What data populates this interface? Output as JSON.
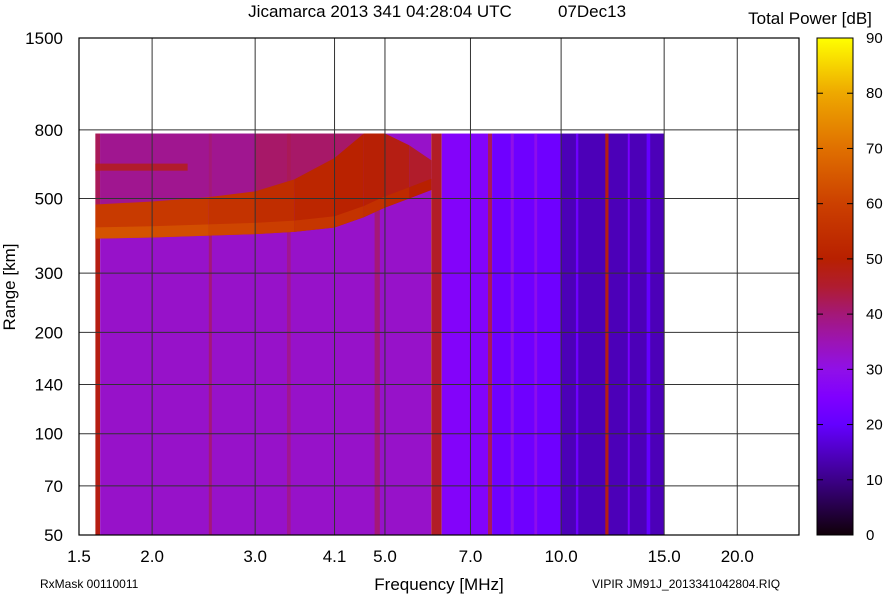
{
  "header": {
    "title": "Jicamarca 2013 341 04:28:04 UTC",
    "date": "07Dec13",
    "colorbar_title": "Total Power [dB]"
  },
  "footer": {
    "left": "RxMask 00110011",
    "right": "VIPIR  JM91J_2013341042804.RIQ"
  },
  "chart_data": {
    "type": "heatmap",
    "title": "Jicamarca 2013 341 04:28:04 UTC   07Dec13",
    "xlabel": "Frequency [MHz]",
    "ylabel": "Range [km]",
    "xscale": "log",
    "yscale": "log",
    "xlim": [
      1.5,
      25.5
    ],
    "ylim": [
      50,
      1500
    ],
    "xticks": [
      1.5,
      2.0,
      3.0,
      4.1,
      5.0,
      7.0,
      10.0,
      15.0,
      20.0
    ],
    "xtick_labels": [
      "1.5",
      "2.0",
      "3.0",
      "4.1",
      "5.0",
      "7.0",
      "10.0",
      "15.0",
      "20.0"
    ],
    "yticks": [
      50,
      70,
      100,
      140,
      200,
      300,
      500,
      800,
      1500
    ],
    "ytick_labels": [
      "50",
      "70",
      "100",
      "140",
      "200",
      "300",
      "500",
      "800",
      "1500"
    ],
    "grid": true,
    "data_extent": {
      "freq": [
        1.6,
        15.0
      ],
      "range": [
        50,
        780
      ]
    },
    "colorbar": {
      "label": "Total Power [dB]",
      "range": [
        0,
        90
      ],
      "ticks": [
        "0",
        "10",
        "20",
        "30",
        "40",
        "50",
        "60",
        "70",
        "80",
        "90"
      ],
      "stops": [
        [
          0,
          "#100008"
        ],
        [
          10,
          "#3c0088"
        ],
        [
          20,
          "#6400ff"
        ],
        [
          25,
          "#8000ff"
        ],
        [
          30,
          "#9010e8"
        ],
        [
          35,
          "#9c14b4"
        ],
        [
          40,
          "#a41878"
        ],
        [
          45,
          "#b01c30"
        ],
        [
          50,
          "#b82000"
        ],
        [
          60,
          "#cc4000"
        ],
        [
          70,
          "#e07000"
        ],
        [
          80,
          "#eea800"
        ],
        [
          90,
          "#ffff00"
        ]
      ]
    },
    "background_bands": [
      {
        "f": [
          1.6,
          1.63
        ],
        "power": 48
      },
      {
        "f": [
          1.63,
          6.0
        ],
        "power": 33
      },
      {
        "f": [
          2.5,
          2.53
        ],
        "power": 40
      },
      {
        "f": [
          3.4,
          3.45
        ],
        "power": 38
      },
      {
        "f": [
          4.8,
          4.9
        ],
        "power": 40
      },
      {
        "f": [
          6.0,
          6.25
        ],
        "power": 46
      },
      {
        "f": [
          6.25,
          7.5
        ],
        "power": 26
      },
      {
        "f": [
          7.5,
          7.62
        ],
        "power": 42
      },
      {
        "f": [
          7.62,
          10.0
        ],
        "power": 22
      },
      {
        "f": [
          8.2,
          8.3
        ],
        "power": 30
      },
      {
        "f": [
          9.0,
          9.1
        ],
        "power": 29
      },
      {
        "f": [
          10.0,
          15.0
        ],
        "power": 14
      },
      {
        "f": [
          10.6,
          10.7
        ],
        "power": 22
      },
      {
        "f": [
          11.9,
          12.05
        ],
        "power": 48
      },
      {
        "f": [
          13.0,
          13.1
        ],
        "power": 24
      },
      {
        "f": [
          14.0,
          14.2
        ],
        "power": 20
      }
    ],
    "echo_trace": [
      {
        "freq": 1.6,
        "h_low": 380,
        "h_high": 480,
        "power": 58
      },
      {
        "freq": 2.0,
        "h_low": 383,
        "h_high": 490,
        "power": 58
      },
      {
        "freq": 2.5,
        "h_low": 388,
        "h_high": 505,
        "power": 57
      },
      {
        "freq": 3.0,
        "h_low": 392,
        "h_high": 525,
        "power": 55
      },
      {
        "freq": 3.5,
        "h_low": 398,
        "h_high": 570,
        "power": 53
      },
      {
        "freq": 4.1,
        "h_low": 410,
        "h_high": 660,
        "power": 51
      },
      {
        "freq": 4.6,
        "h_low": 440,
        "h_high": 780,
        "power": 50
      },
      {
        "freq": 5.0,
        "h_low": 470,
        "h_high": 780,
        "power": 49
      },
      {
        "freq": 5.5,
        "h_low": 500,
        "h_high": 720,
        "power": 47
      },
      {
        "freq": 6.0,
        "h_low": 530,
        "h_high": 650,
        "power": 44
      }
    ],
    "spread_echo": [
      {
        "freq": [
          1.6,
          3.0
        ],
        "range": [
          480,
          780
        ],
        "power": 40
      },
      {
        "freq": [
          3.0,
          4.6
        ],
        "range": [
          520,
          780
        ],
        "power": 44
      }
    ],
    "secondary_trace": {
      "freq": [
        1.6,
        2.3
      ],
      "range": [
        605,
        635
      ],
      "power": 48
    }
  }
}
